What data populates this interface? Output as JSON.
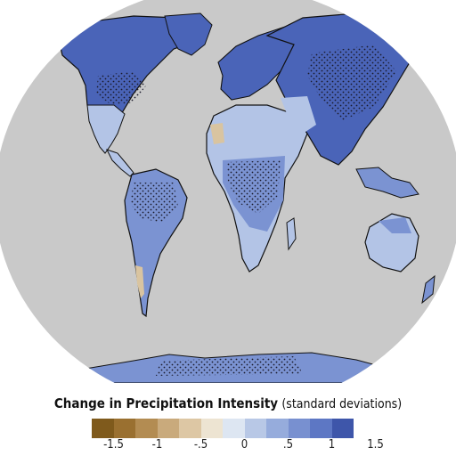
{
  "legend": {
    "title": "Change in Precipitation Intensity",
    "subtitle": "(standard deviations)",
    "colors": [
      "#7f5a1c",
      "#9a7030",
      "#b38c52",
      "#c9aa7c",
      "#ddc7a4",
      "#ede4d2",
      "#dde6f2",
      "#b8c8e6",
      "#96acdc",
      "#7890d0",
      "#5d77c4",
      "#3e56aa"
    ],
    "ticks": [
      "-1.5",
      "-1",
      "-.5",
      "0",
      ".5",
      "1",
      "1.5"
    ]
  },
  "map": {
    "ocean_color": "#c9c9c9",
    "background_color": "#ffffff",
    "land_colors": {
      "strong_positive": "#4a64b8",
      "moderate_positive": "#7b93d2",
      "weak_positive": "#b3c4e6",
      "neutral": "#e2e6ee",
      "weak_negative": "#d9c4a0"
    }
  }
}
